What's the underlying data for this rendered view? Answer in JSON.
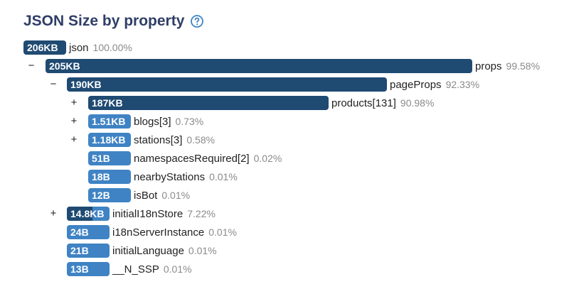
{
  "header": {
    "title": "JSON Size by property",
    "help_icon": "question-circle-icon"
  },
  "rows": [
    {
      "size": "206KB",
      "name": "json",
      "pct": "100.00%"
    },
    {
      "toggle": "−",
      "size": "205KB",
      "name": "props",
      "pct": "99.58%"
    },
    {
      "toggle": "−",
      "size": "190KB",
      "name": "pageProps",
      "pct": "92.33%"
    },
    {
      "toggle": "+",
      "size": "187KB",
      "name": "products[131]",
      "pct": "90.98%"
    },
    {
      "toggle": "+",
      "size": "1.51KB",
      "name": "blogs[3]",
      "pct": "0.73%"
    },
    {
      "toggle": "+",
      "size": "1.18KB",
      "name": "stations[3]",
      "pct": "0.58%"
    },
    {
      "size": "51B",
      "name": "namespacesRequired[2]",
      "pct": "0.02%"
    },
    {
      "size": "18B",
      "name": "nearbyStations",
      "pct": "0.01%"
    },
    {
      "size": "12B",
      "name": "isBot",
      "pct": "0.01%"
    },
    {
      "toggle": "+",
      "size": "14.8KB",
      "name": "initialI18nStore",
      "pct": "7.22%"
    },
    {
      "size": "24B",
      "name": "i18nServerInstance",
      "pct": "0.01%"
    },
    {
      "size": "21B",
      "name": "initialLanguage",
      "pct": "0.01%"
    },
    {
      "size": "13B",
      "name": "__N_SSP",
      "pct": "0.01%"
    }
  ],
  "colors": {
    "title": "#2f3e66",
    "bar_dark": "#1f4a72",
    "bar_light": "#3f83c4",
    "pct": "#8a8a8a"
  }
}
